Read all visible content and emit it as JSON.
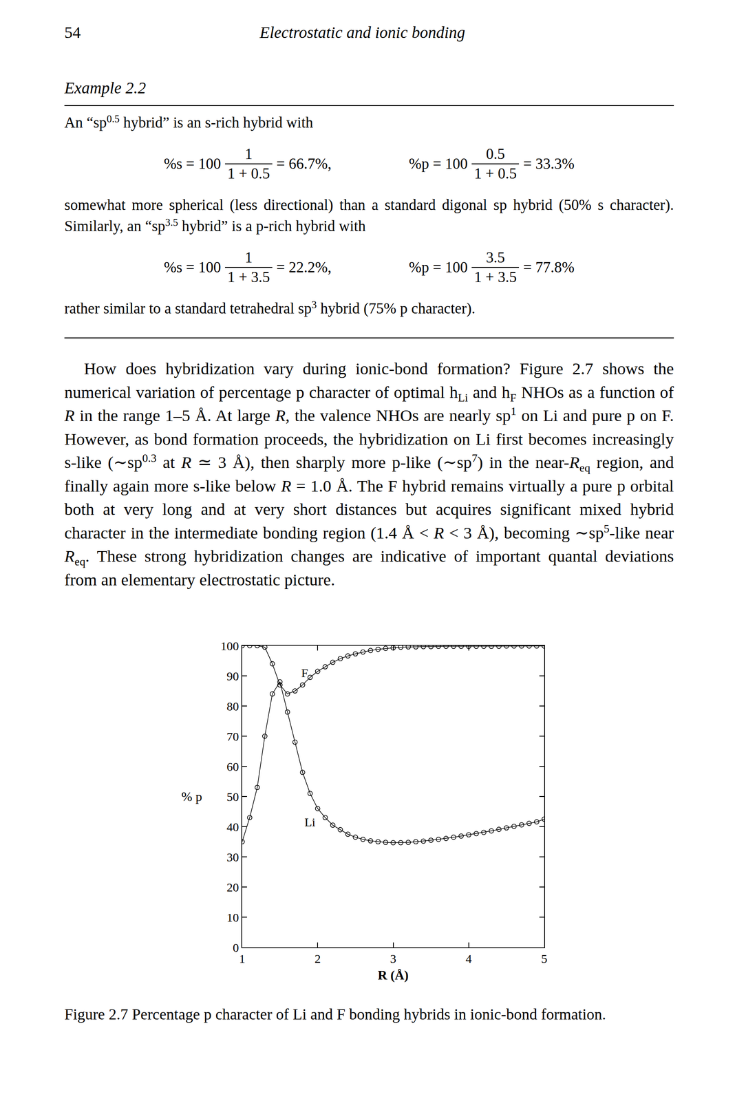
{
  "header": {
    "page": "54",
    "running_title": "Electrostatic and ionic bonding"
  },
  "example": {
    "title": "Example 2.2",
    "blocks": [
      {
        "runs": [
          {
            "t": "An “sp"
          },
          {
            "sup": "0.5"
          },
          {
            "t": " hybrid” is an s-rich hybrid with"
          }
        ]
      },
      {
        "eq": [
          {
            "lhs": "%s = 100",
            "num": "1",
            "den": "1 + 0.5",
            "rhs": "= 66.7%,"
          },
          {
            "lhs": "%p = 100",
            "num": "0.5",
            "den": "1 + 0.5",
            "rhs": "= 33.3%"
          }
        ]
      },
      {
        "runs": [
          {
            "t": "somewhat more spherical (less directional) than a standard digonal sp hybrid (50% s character). Similarly, an “sp"
          },
          {
            "sup": "3.5"
          },
          {
            "t": " hybrid” is a p-rich hybrid with"
          }
        ]
      },
      {
        "eq": [
          {
            "lhs": "%s = 100",
            "num": "1",
            "den": "1 + 3.5",
            "rhs": "= 22.2%,"
          },
          {
            "lhs": "%p = 100",
            "num": "3.5",
            "den": "1 + 3.5",
            "rhs": "= 77.8%"
          }
        ]
      },
      {
        "runs": [
          {
            "t": "rather similar to a standard tetrahedral sp"
          },
          {
            "sup": "3"
          },
          {
            "t": " hybrid (75% p character)."
          }
        ]
      }
    ]
  },
  "paragraph": [
    {
      "t": "How does hybridization vary during ionic-bond formation? Figure 2.7 shows the numerical variation of percentage p character of optimal h"
    },
    {
      "sub": "Li"
    },
    {
      "t": " and h"
    },
    {
      "sub": "F"
    },
    {
      "t": " NHOs as a function of "
    },
    {
      "i": "R"
    },
    {
      "t": " in the range 1–5 Å. At large "
    },
    {
      "i": "R"
    },
    {
      "t": ", the valence NHOs are nearly sp"
    },
    {
      "sup": "1"
    },
    {
      "t": " on Li and pure p on F. However, as bond formation proceeds, the hybridization on Li first becomes increasingly s-like (∼sp"
    },
    {
      "sup": "0.3"
    },
    {
      "t": " at "
    },
    {
      "i": "R"
    },
    {
      "t": " ≃ 3 Å), then sharply more p-like (∼sp"
    },
    {
      "sup": "7"
    },
    {
      "t": ") in the near-"
    },
    {
      "i": "R"
    },
    {
      "sub": "eq"
    },
    {
      "t": " region, and finally again more s-like below "
    },
    {
      "i": "R"
    },
    {
      "t": " = 1.0 Å. The F hybrid remains virtually a pure p orbital both at very long and at very short distances but acquires significant mixed hybrid character in the intermediate bonding region (1.4 Å < "
    },
    {
      "i": "R"
    },
    {
      "t": " < 3 Å), becoming ∼sp"
    },
    {
      "sup": "5"
    },
    {
      "t": "-like near "
    },
    {
      "i": "R"
    },
    {
      "sub": "eq"
    },
    {
      "t": ". These strong hybridization changes are indicative of important quantal deviations from an elementary electrostatic picture."
    }
  ],
  "chart_data": {
    "type": "line",
    "xlabel": "R (Å)",
    "ylabel": "% p",
    "x": [
      1.0,
      1.1,
      1.2,
      1.3,
      1.4,
      1.5,
      1.6,
      1.7,
      1.8,
      1.9,
      2.0,
      2.1,
      2.2,
      2.3,
      2.4,
      2.5,
      2.6,
      2.7,
      2.8,
      2.9,
      3.0,
      3.1,
      3.2,
      3.3,
      3.4,
      3.5,
      3.6,
      3.7,
      3.8,
      3.9,
      4.0,
      4.1,
      4.2,
      4.3,
      4.4,
      4.5,
      4.6,
      4.7,
      4.8,
      4.9,
      5.0
    ],
    "series": [
      {
        "name": "F",
        "color": "#000000",
        "marker": "circle-open",
        "line_style": "solid",
        "values": [
          100,
          100,
          100,
          99.5,
          94,
          87,
          84,
          85,
          87,
          89.5,
          91.5,
          93,
          94.5,
          95.7,
          96.6,
          97.3,
          97.9,
          98.4,
          98.8,
          99.1,
          99.3,
          99.5,
          99.6,
          99.6,
          99.7,
          99.7,
          99.8,
          99.8,
          99.8,
          99.8,
          99.8,
          99.8,
          99.8,
          99.8,
          99.8,
          99.9,
          99.9,
          99.9,
          99.9,
          99.9,
          99.9
        ]
      },
      {
        "name": "Li",
        "color": "#000000",
        "marker": "circle-open",
        "line_style": "solid",
        "values": [
          35,
          43,
          53,
          70,
          84,
          88,
          78,
          68,
          58,
          51,
          46,
          43,
          40.5,
          39,
          37.5,
          36.5,
          35.8,
          35.3,
          35,
          34.8,
          34.7,
          34.7,
          34.8,
          35,
          35.2,
          35.5,
          35.8,
          36.1,
          36.5,
          36.9,
          37.3,
          37.7,
          38.1,
          38.6,
          39.1,
          39.6,
          40.1,
          40.6,
          41.1,
          41.6,
          42.5
        ]
      }
    ],
    "annotations": [
      {
        "text": "F",
        "x": 1.83,
        "y": 91
      },
      {
        "text": "Li",
        "x": 1.9,
        "y": 41.5
      }
    ],
    "xlim": [
      1,
      5
    ],
    "xticks": [
      1,
      2,
      3,
      4,
      5
    ],
    "ylim": [
      0,
      100
    ],
    "yticks": [
      0,
      10,
      20,
      30,
      40,
      50,
      60,
      70,
      80,
      90,
      100
    ],
    "grid": false
  },
  "caption": "Figure 2.7 Percentage p character of Li and F bonding hybrids in ionic-bond formation."
}
